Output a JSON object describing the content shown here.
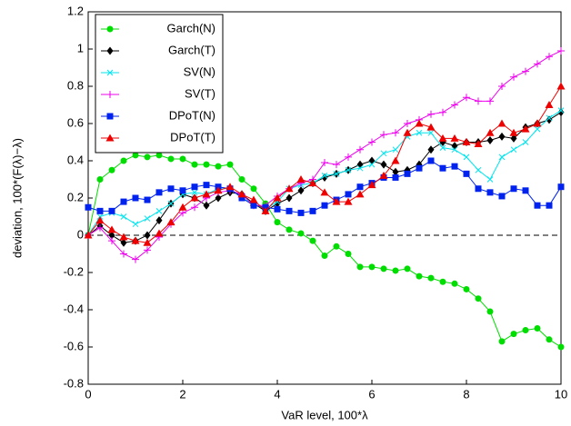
{
  "chart_data": {
    "type": "line",
    "xlabel": "VaR level, 100*λ",
    "ylabel": "deviation, 100*(F(λ)−λ)",
    "xlim": [
      0,
      10
    ],
    "ylim": [
      -0.8,
      1.2
    ],
    "xticks": [
      0,
      2,
      4,
      6,
      8,
      10
    ],
    "yticks": [
      -0.8,
      -0.6,
      -0.4,
      -0.2,
      0,
      0.2,
      0.4,
      0.6,
      0.8,
      1,
      1.2
    ],
    "reference_line": 0,
    "legend": "upper-left",
    "x": [
      0,
      0.25,
      0.5,
      0.75,
      1,
      1.25,
      1.5,
      1.75,
      2,
      2.25,
      2.5,
      2.75,
      3,
      3.25,
      3.5,
      3.75,
      4,
      4.25,
      4.5,
      4.75,
      5,
      5.25,
      5.5,
      5.75,
      6,
      6.25,
      6.5,
      6.75,
      7,
      7.25,
      7.5,
      7.75,
      8,
      8.25,
      8.5,
      8.75,
      9,
      9.25,
      9.5,
      9.75,
      10
    ],
    "series": [
      {
        "name": "Garch(N)",
        "color": "#00dd00",
        "marker": "circle",
        "values": [
          0,
          0.3,
          0.35,
          0.4,
          0.43,
          0.42,
          0.43,
          0.41,
          0.41,
          0.38,
          0.38,
          0.37,
          0.38,
          0.3,
          0.25,
          0.17,
          0.07,
          0.03,
          0.01,
          -0.03,
          -0.11,
          -0.06,
          -0.1,
          -0.17,
          -0.17,
          -0.18,
          -0.19,
          -0.18,
          -0.22,
          -0.23,
          -0.25,
          -0.26,
          -0.29,
          -0.34,
          -0.41,
          -0.57,
          -0.53,
          -0.51,
          -0.5,
          -0.56,
          -0.6
        ]
      },
      {
        "name": "Garch(T)",
        "color": "#000000",
        "marker": "diamond",
        "values": [
          0,
          0.05,
          0,
          -0.04,
          -0.03,
          0,
          0.08,
          0.17,
          0.22,
          0.2,
          0.16,
          0.2,
          0.23,
          0.22,
          0.17,
          0.13,
          0.17,
          0.2,
          0.24,
          0.28,
          0.31,
          0.33,
          0.35,
          0.38,
          0.4,
          0.38,
          0.34,
          0.35,
          0.38,
          0.46,
          0.5,
          0.48,
          0.5,
          0.5,
          0.51,
          0.53,
          0.52,
          0.58,
          0.6,
          0.62,
          0.66
        ]
      },
      {
        "name": "SV(N)",
        "color": "#00e5ee",
        "marker": "x",
        "values": [
          0,
          0.1,
          0.12,
          0.1,
          0.06,
          0.09,
          0.13,
          0.17,
          0.22,
          0.23,
          0.22,
          0.25,
          0.25,
          0.2,
          0.17,
          0.14,
          0.18,
          0.25,
          0.27,
          0.28,
          0.32,
          0.33,
          0.35,
          0.36,
          0.38,
          0.44,
          0.46,
          0.53,
          0.55,
          0.55,
          0.47,
          0.46,
          0.42,
          0.35,
          0.3,
          0.42,
          0.46,
          0.5,
          0.57,
          0.63,
          0.67
        ]
      },
      {
        "name": "SV(T)",
        "color": "#ee00ee",
        "marker": "plus",
        "values": [
          0,
          0.04,
          -0.03,
          -0.1,
          -0.13,
          -0.08,
          -0.01,
          0.06,
          0.12,
          0.15,
          0.2,
          0.23,
          0.24,
          0.22,
          0.16,
          0.16,
          0.21,
          0.25,
          0.28,
          0.3,
          0.39,
          0.38,
          0.42,
          0.46,
          0.5,
          0.54,
          0.55,
          0.6,
          0.62,
          0.65,
          0.66,
          0.7,
          0.74,
          0.72,
          0.72,
          0.8,
          0.85,
          0.88,
          0.92,
          0.96,
          0.99
        ]
      },
      {
        "name": "DPoT(N)",
        "color": "#0022ee",
        "marker": "square",
        "values": [
          0.15,
          0.13,
          0.13,
          0.18,
          0.2,
          0.19,
          0.23,
          0.25,
          0.24,
          0.26,
          0.27,
          0.26,
          0.25,
          0.2,
          0.16,
          0.15,
          0.14,
          0.13,
          0.12,
          0.13,
          0.16,
          0.19,
          0.22,
          0.26,
          0.28,
          0.31,
          0.31,
          0.33,
          0.36,
          0.4,
          0.36,
          0.37,
          0.33,
          0.25,
          0.23,
          0.21,
          0.25,
          0.24,
          0.16,
          0.16,
          0.26
        ]
      },
      {
        "name": "DPoT(T)",
        "color": "#ee0000",
        "marker": "triangle",
        "values": [
          0,
          0.08,
          0.03,
          -0.01,
          -0.03,
          -0.04,
          0.01,
          0.07,
          0.15,
          0.2,
          0.22,
          0.24,
          0.26,
          0.22,
          0.19,
          0.13,
          0.2,
          0.25,
          0.3,
          0.28,
          0.23,
          0.18,
          0.18,
          0.22,
          0.27,
          0.32,
          0.4,
          0.55,
          0.6,
          0.58,
          0.52,
          0.52,
          0.5,
          0.49,
          0.55,
          0.6,
          0.55,
          0.57,
          0.6,
          0.7,
          0.8
        ]
      }
    ]
  }
}
